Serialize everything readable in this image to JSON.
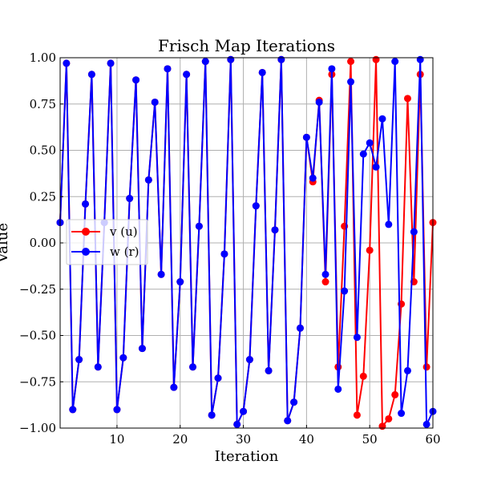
{
  "chart_data": {
    "type": "line",
    "title": "Frisch Map Iterations",
    "xlabel": "Iteration",
    "ylabel": "Value",
    "xlim": [
      1,
      60
    ],
    "ylim": [
      -1.0,
      1.0
    ],
    "xticks": [
      10,
      20,
      30,
      40,
      50,
      60
    ],
    "xtick_labels": [
      "10",
      "20",
      "30",
      "40",
      "50",
      "60"
    ],
    "yticks": [
      -1.0,
      -0.75,
      -0.5,
      -0.25,
      0.0,
      0.25,
      0.5,
      0.75,
      1.0
    ],
    "ytick_labels": [
      "−1.00",
      "−0.75",
      "−0.50",
      "−0.25",
      "0.00",
      "0.25",
      "0.50",
      "0.75",
      "1.00"
    ],
    "grid": true,
    "legend_position": "center-left",
    "x": [
      1,
      2,
      3,
      4,
      5,
      6,
      7,
      8,
      9,
      10,
      11,
      12,
      13,
      14,
      15,
      16,
      17,
      18,
      19,
      20,
      21,
      22,
      23,
      24,
      25,
      26,
      27,
      28,
      29,
      30,
      31,
      32,
      33,
      34,
      35,
      36,
      37,
      38,
      39,
      40,
      41,
      42,
      43,
      44,
      45,
      46,
      47,
      48,
      49,
      50,
      51,
      52,
      53,
      54,
      55,
      56,
      57,
      58,
      59,
      60
    ],
    "series": [
      {
        "name": "v (u)",
        "color": "#ff0000",
        "values": [
          0.11,
          0.97,
          -0.9,
          -0.63,
          0.21,
          0.91,
          -0.67,
          0.11,
          0.97,
          -0.9,
          -0.62,
          0.24,
          0.88,
          -0.57,
          0.34,
          0.76,
          -0.17,
          0.94,
          -0.78,
          -0.21,
          0.91,
          -0.67,
          0.09,
          0.98,
          -0.93,
          -0.73,
          -0.06,
          0.99,
          -0.98,
          -0.91,
          -0.63,
          0.2,
          0.92,
          -0.69,
          0.07,
          0.99,
          -0.96,
          -0.86,
          -0.46,
          0.57,
          0.33,
          0.77,
          -0.21,
          0.91,
          -0.67,
          0.09,
          0.98,
          -0.93,
          -0.72,
          -0.04,
          0.99,
          -0.99,
          -0.95,
          -0.82,
          -0.33,
          0.78,
          -0.21,
          0.91,
          -0.67,
          0.11
        ]
      },
      {
        "name": "w (r)",
        "color": "#0000ff",
        "values": [
          0.11,
          0.97,
          -0.9,
          -0.63,
          0.21,
          0.91,
          -0.67,
          0.11,
          0.97,
          -0.9,
          -0.62,
          0.24,
          0.88,
          -0.57,
          0.34,
          0.76,
          -0.17,
          0.94,
          -0.78,
          -0.21,
          0.91,
          -0.67,
          0.09,
          0.98,
          -0.93,
          -0.73,
          -0.06,
          0.99,
          -0.98,
          -0.91,
          -0.63,
          0.2,
          0.92,
          -0.69,
          0.07,
          0.99,
          -0.96,
          -0.86,
          -0.46,
          0.57,
          0.35,
          0.76,
          -0.17,
          0.94,
          -0.79,
          -0.26,
          0.87,
          -0.51,
          0.48,
          0.54,
          0.41,
          0.67,
          0.1,
          0.98,
          -0.92,
          -0.69,
          0.06,
          0.99,
          -0.98,
          -0.91
        ]
      }
    ]
  }
}
